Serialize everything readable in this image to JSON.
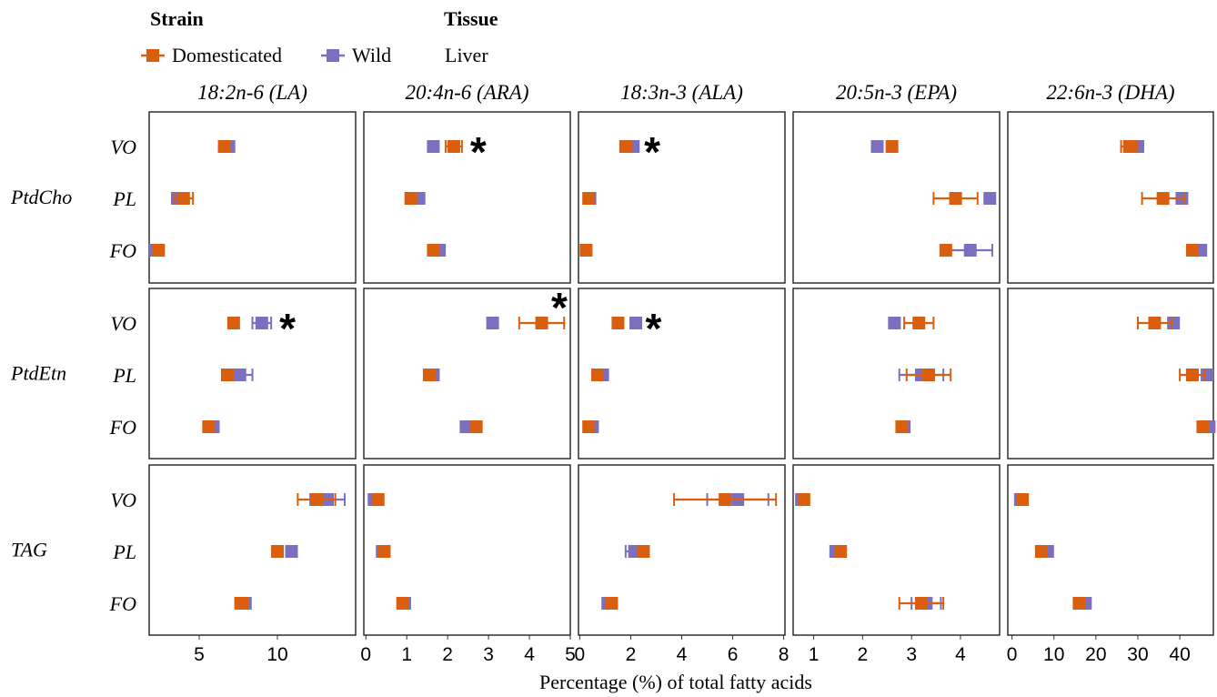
{
  "legend": {
    "strain_title": "Strain",
    "tissue_title": "Tissue",
    "tissue_value": "Liver",
    "items": [
      {
        "label": "Domesticated",
        "color": "#D95F0E"
      },
      {
        "label": "Wild",
        "color": "#7B6FBF"
      }
    ]
  },
  "x_title": "Percentage (%) of total fatty acids",
  "chart_data": {
    "type": "scatter",
    "encoding": "dot plot with horizontal error bars (mean ± error), faceted",
    "x_title": "Percentage (%) of total fatty acids",
    "facet_columns": [
      "18:2n-6 (LA)",
      "20:4n-6 (ARA)",
      "18:3n-3 (ALA)",
      "20:5n-3 (EPA)",
      "22:6n-3 (DHA)"
    ],
    "facet_rows": [
      "PtdCho",
      "PtdEtn",
      "TAG"
    ],
    "diets": [
      "VO",
      "PL",
      "FO"
    ],
    "series": [
      {
        "name": "Domesticated",
        "color": "#D95F0E"
      },
      {
        "name": "Wild",
        "color": "#7B6FBF"
      }
    ],
    "columns": [
      {
        "name": "18:2n-6 (LA)",
        "xlim": [
          1.8,
          15.0
        ],
        "ticks": [
          5,
          10
        ]
      },
      {
        "name": "20:4n-6 (ARA)",
        "xlim": [
          -0.05,
          5.0
        ],
        "ticks": [
          0,
          1,
          2,
          3,
          4,
          5
        ]
      },
      {
        "name": "18:3n-3 (ALA)",
        "xlim": [
          -0.05,
          8.05
        ],
        "ticks": [
          0,
          2,
          4,
          6,
          8
        ]
      },
      {
        "name": "20:5n-3 (EPA)",
        "xlim": [
          0.58,
          4.8
        ],
        "ticks": [
          1,
          2,
          3,
          4
        ]
      },
      {
        "name": "22:6n-3 (DHA)",
        "xlim": [
          -1.0,
          48.0
        ],
        "ticks": [
          0,
          10,
          20,
          30,
          40
        ]
      }
    ],
    "panels": [
      {
        "row": "PtdCho",
        "col": "18:2n-6 (LA)",
        "significant_diet": "",
        "points": [
          {
            "diet": "VO",
            "Domesticated": 6.6,
            "dom_err": 0.2,
            "Wild": 6.9,
            "wild_err": 0.2
          },
          {
            "diet": "PL",
            "Domesticated": 4.0,
            "dom_err": 0.6,
            "Wild": 3.6,
            "wild_err": 0.2
          },
          {
            "diet": "FO",
            "Domesticated": 2.4,
            "dom_err": 0.1,
            "Wild": 2.2,
            "wild_err": 0.1
          }
        ]
      },
      {
        "row": "PtdCho",
        "col": "20:4n-6 (ARA)",
        "significant_diet": "VO",
        "points": [
          {
            "diet": "VO",
            "Domesticated": 2.15,
            "dom_err": 0.2,
            "Wild": 1.65,
            "wild_err": 0.05
          },
          {
            "diet": "PL",
            "Domesticated": 1.1,
            "dom_err": 0.05,
            "Wild": 1.3,
            "wild_err": 0.05
          },
          {
            "diet": "FO",
            "Domesticated": 1.65,
            "dom_err": 0.05,
            "Wild": 1.8,
            "wild_err": 0.05
          }
        ]
      },
      {
        "row": "PtdCho",
        "col": "18:3n-3 (ALA)",
        "significant_diet": "VO",
        "points": [
          {
            "diet": "VO",
            "Domesticated": 1.8,
            "dom_err": 0.1,
            "Wild": 2.1,
            "wild_err": 0.1
          },
          {
            "diet": "PL",
            "Domesticated": 0.35,
            "dom_err": 0.05,
            "Wild": 0.4,
            "wild_err": 0.05
          },
          {
            "diet": "FO",
            "Domesticated": 0.25,
            "dom_err": 0.05,
            "Wild": 0.25,
            "wild_err": 0.05
          }
        ]
      },
      {
        "row": "PtdCho",
        "col": "20:5n-3 (EPA)",
        "significant_diet": "",
        "points": [
          {
            "diet": "VO",
            "Domesticated": 2.6,
            "dom_err": 0.1,
            "Wild": 2.3,
            "wild_err": 0.1
          },
          {
            "diet": "PL",
            "Domesticated": 3.9,
            "dom_err": 0.45,
            "Wild": 4.6,
            "wild_err": 0.05
          },
          {
            "diet": "FO",
            "Domesticated": 3.7,
            "dom_err": 0.05,
            "Wild": 4.2,
            "wild_err": 0.45
          }
        ]
      },
      {
        "row": "PtdCho",
        "col": "22:6n-3 (DHA)",
        "significant_diet": "",
        "points": [
          {
            "diet": "VO",
            "Domesticated": 28,
            "dom_err": 2,
            "Wild": 30,
            "wild_err": 1
          },
          {
            "diet": "PL",
            "Domesticated": 36,
            "dom_err": 5,
            "Wild": 40.5,
            "wild_err": 1
          },
          {
            "diet": "FO",
            "Domesticated": 43,
            "dom_err": 1,
            "Wild": 45,
            "wild_err": 1
          }
        ]
      },
      {
        "row": "PtdEtn",
        "col": "18:2n-6 (LA)",
        "significant_diet": "VO",
        "points": [
          {
            "diet": "VO",
            "Domesticated": 7.2,
            "dom_err": 0.2,
            "Wild": 9.0,
            "wild_err": 0.6
          },
          {
            "diet": "PL",
            "Domesticated": 6.8,
            "dom_err": 0.2,
            "Wild": 7.6,
            "wild_err": 0.8
          },
          {
            "diet": "FO",
            "Domesticated": 5.6,
            "dom_err": 0.1,
            "Wild": 5.9,
            "wild_err": 0.2
          }
        ]
      },
      {
        "row": "PtdEtn",
        "col": "20:4n-6 (ARA)",
        "significant_diet": "VO",
        "points": [
          {
            "diet": "VO",
            "Domesticated": 4.3,
            "dom_err": 0.55,
            "Wild": 3.1,
            "wild_err": 0.05
          },
          {
            "diet": "PL",
            "Domesticated": 1.55,
            "dom_err": 0.05,
            "Wild": 1.65,
            "wild_err": 0.05
          },
          {
            "diet": "FO",
            "Domesticated": 2.7,
            "dom_err": 0.1,
            "Wild": 2.45,
            "wild_err": 0.05
          }
        ]
      },
      {
        "row": "PtdEtn",
        "col": "18:3n-3 (ALA)",
        "significant_diet": "VO",
        "points": [
          {
            "diet": "VO",
            "Domesticated": 1.5,
            "dom_err": 0.05,
            "Wild": 2.2,
            "wild_err": 0.05
          },
          {
            "diet": "PL",
            "Domesticated": 0.7,
            "dom_err": 0.1,
            "Wild": 0.9,
            "wild_err": 0.1
          },
          {
            "diet": "FO",
            "Domesticated": 0.35,
            "dom_err": 0.05,
            "Wild": 0.5,
            "wild_err": 0.05
          }
        ]
      },
      {
        "row": "PtdEtn",
        "col": "20:5n-3 (EPA)",
        "significant_diet": "",
        "points": [
          {
            "diet": "VO",
            "Domesticated": 3.15,
            "dom_err": 0.3,
            "Wild": 2.65,
            "wild_err": 0.05
          },
          {
            "diet": "PL",
            "Domesticated": 3.35,
            "dom_err": 0.45,
            "Wild": 3.2,
            "wild_err": 0.45
          },
          {
            "diet": "FO",
            "Domesticated": 2.8,
            "dom_err": 0.05,
            "Wild": 2.85,
            "wild_err": 0.05
          }
        ]
      },
      {
        "row": "PtdEtn",
        "col": "22:6n-3 (DHA)",
        "significant_diet": "",
        "points": [
          {
            "diet": "VO",
            "Domesticated": 34,
            "dom_err": 4,
            "Wild": 38.5,
            "wild_err": 1
          },
          {
            "diet": "PL",
            "Domesticated": 43,
            "dom_err": 3,
            "Wild": 46.5,
            "wild_err": 1
          },
          {
            "diet": "FO",
            "Domesticated": 45.5,
            "dom_err": 0.5,
            "Wild": 47,
            "wild_err": 1
          }
        ]
      },
      {
        "row": "TAG",
        "col": "18:2n-6 (LA)",
        "significant_diet": "",
        "points": [
          {
            "diet": "VO",
            "Domesticated": 12.5,
            "dom_err": 1.2,
            "Wild": 13.2,
            "wild_err": 1.1
          },
          {
            "diet": "PL",
            "Domesticated": 10.0,
            "dom_err": 0.2,
            "Wild": 10.9,
            "wild_err": 0.2
          },
          {
            "diet": "FO",
            "Domesticated": 7.7,
            "dom_err": 0.4,
            "Wild": 7.9,
            "wild_err": 0.4
          }
        ]
      },
      {
        "row": "TAG",
        "col": "20:4n-6 (ARA)",
        "significant_diet": "",
        "points": [
          {
            "diet": "VO",
            "Domesticated": 0.3,
            "dom_err": 0.05,
            "Wild": 0.2,
            "wild_err": 0.05
          },
          {
            "diet": "PL",
            "Domesticated": 0.45,
            "dom_err": 0.05,
            "Wild": 0.4,
            "wild_err": 0.05
          },
          {
            "diet": "FO",
            "Domesticated": 0.9,
            "dom_err": 0.05,
            "Wild": 0.95,
            "wild_err": 0.05
          }
        ]
      },
      {
        "row": "TAG",
        "col": "18:3n-3 (ALA)",
        "significant_diet": "",
        "points": [
          {
            "diet": "VO",
            "Domesticated": 5.7,
            "dom_err": 2.0,
            "Wild": 6.2,
            "wild_err": 1.2
          },
          {
            "diet": "PL",
            "Domesticated": 2.5,
            "dom_err": 0.1,
            "Wild": 2.15,
            "wild_err": 0.35
          },
          {
            "diet": "FO",
            "Domesticated": 1.25,
            "dom_err": 0.1,
            "Wild": 1.1,
            "wild_err": 0.1
          }
        ]
      },
      {
        "row": "TAG",
        "col": "20:5n-3 (EPA)",
        "significant_diet": "",
        "points": [
          {
            "diet": "VO",
            "Domesticated": 0.8,
            "dom_err": 0.05,
            "Wild": 0.75,
            "wild_err": 0.05
          },
          {
            "diet": "PL",
            "Domesticated": 1.55,
            "dom_err": 0.05,
            "Wild": 1.45,
            "wild_err": 0.05
          },
          {
            "diet": "FO",
            "Domesticated": 3.2,
            "dom_err": 0.45,
            "Wild": 3.3,
            "wild_err": 0.3
          }
        ]
      },
      {
        "row": "TAG",
        "col": "22:6n-3 (DHA)",
        "significant_diet": "",
        "points": [
          {
            "diet": "VO",
            "Domesticated": 2.5,
            "dom_err": 0.5,
            "Wild": 2.0,
            "wild_err": 0.5
          },
          {
            "diet": "PL",
            "Domesticated": 7.0,
            "dom_err": 0.5,
            "Wild": 8.5,
            "wild_err": 0.5
          },
          {
            "diet": "FO",
            "Domesticated": 16.0,
            "dom_err": 1,
            "Wild": 17.5,
            "wild_err": 1
          }
        ]
      }
    ]
  }
}
